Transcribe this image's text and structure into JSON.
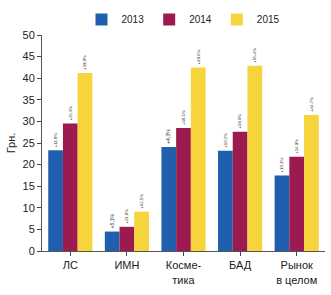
{
  "chart_data": {
    "type": "bar",
    "y_label": "Грн.",
    "categories": [
      "ЛС",
      "ИМН",
      "Косме-\nтика",
      "БАД",
      "Рынок\nв целом"
    ],
    "series": [
      {
        "name": "2013",
        "color": "#1f5fae",
        "values": [
          23.3,
          4.5,
          24.1,
          23.2,
          17.5
        ],
        "labels": [
          "+11,8%",
          "+5,1%",
          "+4,3%",
          "+10,2%",
          "+10,1%"
        ]
      },
      {
        "name": "2014",
        "color": "#9c1a4f",
        "values": [
          29.5,
          5.6,
          28.5,
          27.6,
          21.8
        ],
        "labels": [
          "+26,3%",
          "+23,8%",
          "+18,5%",
          "+19,0%",
          "+24,9%"
        ]
      },
      {
        "name": "2015",
        "color": "#f6d53c",
        "values": [
          41.2,
          9.1,
          42.5,
          42.9,
          31.5
        ],
        "labels": [
          "+39,9%",
          "+62,5%",
          "+49,6%",
          "+55,4%",
          "+44,7%"
        ]
      }
    ],
    "ylim": [
      0,
      50
    ],
    "yticks": [
      0,
      5,
      10,
      15,
      20,
      25,
      30,
      35,
      40,
      45,
      50
    ],
    "grid": false,
    "legend": "top"
  }
}
